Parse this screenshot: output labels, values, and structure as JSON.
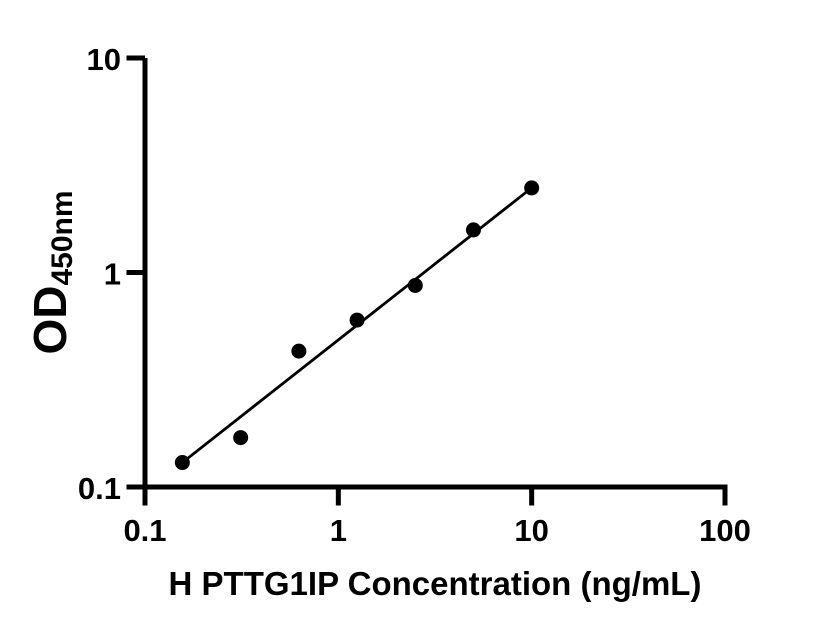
{
  "chart_data": {
    "type": "scatter",
    "title": "",
    "xlabel": "H PTTG1IP Concentration (ng/mL)",
    "ylabel": "OD",
    "ylabel_subscript": "450nm",
    "x_scale": "log",
    "y_scale": "log",
    "xlim": [
      0.1,
      100
    ],
    "ylim": [
      0.1,
      10
    ],
    "x_ticks": [
      0.1,
      1,
      10,
      100
    ],
    "x_tick_labels": [
      "0.1",
      "1",
      "10",
      "100"
    ],
    "y_ticks": [
      0.1,
      1,
      10
    ],
    "y_tick_labels": [
      "0.1",
      "1",
      "10"
    ],
    "grid": false,
    "legend": null,
    "points": [
      {
        "x": 0.156,
        "y": 0.13
      },
      {
        "x": 0.3125,
        "y": 0.17
      },
      {
        "x": 0.625,
        "y": 0.43
      },
      {
        "x": 1.25,
        "y": 0.6
      },
      {
        "x": 2.5,
        "y": 0.87
      },
      {
        "x": 5,
        "y": 1.58
      },
      {
        "x": 10,
        "y": 2.48
      }
    ],
    "fit_line": {
      "x_start": 0.156,
      "y_start": 0.13,
      "x_end": 10,
      "y_end": 2.48
    },
    "colors": {
      "points": "#000000",
      "line": "#000000",
      "axis": "#000000",
      "text": "#000000",
      "background": "#ffffff"
    }
  }
}
